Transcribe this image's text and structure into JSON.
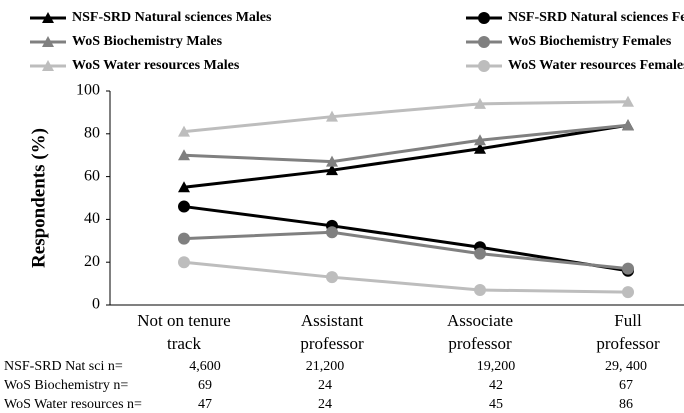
{
  "chart_data": {
    "type": "line",
    "categories": [
      "Not on tenure track",
      "Assistant professor",
      "Associate professor",
      "Full professor"
    ],
    "series": [
      {
        "name": "NSF-SRD Natural sciences Males",
        "color": "#000000",
        "marker": "triangle",
        "values": [
          55,
          63,
          73,
          84
        ]
      },
      {
        "name": "NSF-SRD Natural sciences Females",
        "color": "#000000",
        "marker": "circle",
        "values": [
          46,
          37,
          27,
          16
        ]
      },
      {
        "name": "WoS Biochemistry Males",
        "color": "#808080",
        "marker": "triangle",
        "values": [
          70,
          67,
          77,
          84
        ]
      },
      {
        "name": "WoS Biochemistry Females",
        "color": "#808080",
        "marker": "circle",
        "values": [
          31,
          34,
          24,
          17
        ]
      },
      {
        "name": "WoS Water resources Males",
        "color": "#bdbdbd",
        "marker": "triangle",
        "values": [
          81,
          88,
          94,
          95
        ]
      },
      {
        "name": "WoS Water resources Females",
        "color": "#bdbdbd",
        "marker": "circle",
        "values": [
          20,
          13,
          7,
          6
        ]
      }
    ],
    "y_label": "Respondents (%)",
    "ylim": [
      0,
      100
    ],
    "yticks": [
      0,
      20,
      40,
      60,
      80,
      100
    ],
    "grid": false,
    "sample_sizes": [
      {
        "label": "NSF-SRD Nat sci n=",
        "values": [
          "4,600",
          "21,200",
          "19,200",
          "29, 400"
        ]
      },
      {
        "label": "WoS Biochemistry n=",
        "values": [
          69,
          24,
          42,
          67
        ]
      },
      {
        "label": "WoS Water resources n=",
        "values": [
          47,
          24,
          45,
          86
        ]
      }
    ]
  }
}
